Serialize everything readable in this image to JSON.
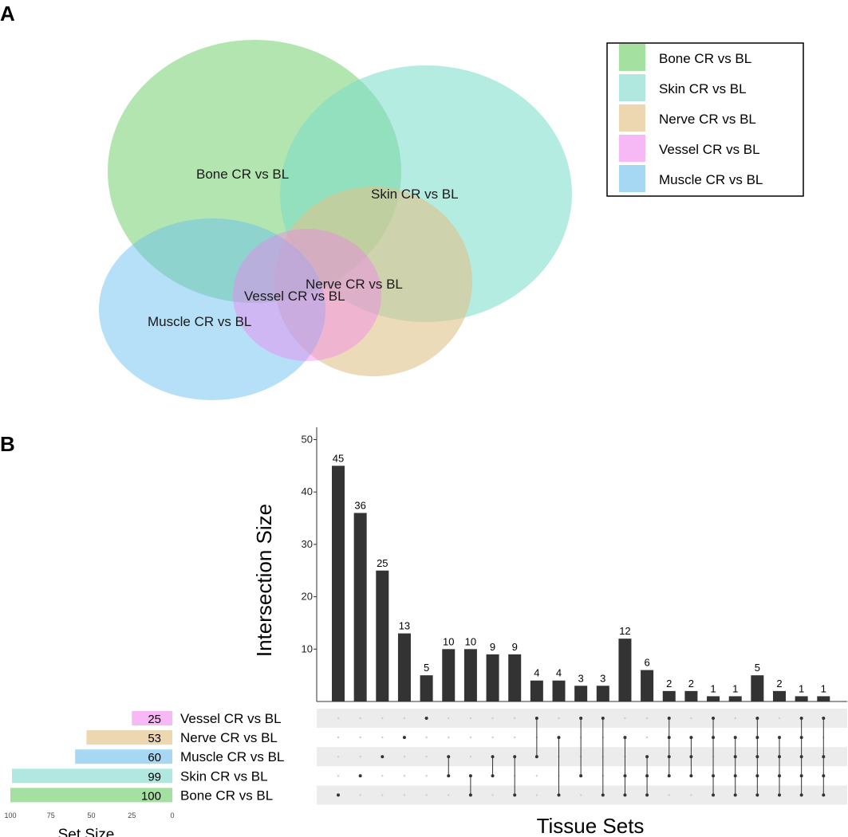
{
  "panels": {
    "a": "A",
    "b": "B"
  },
  "colors": {
    "bone": "#7fd47a",
    "skin": "#78dcc9",
    "nerve": "#e0c38a",
    "vessel": "#f47ff0",
    "muscle": "#6cc2f0",
    "bar": "#333333",
    "dot": "#333333",
    "dot_inactive": "#cccccc",
    "stripe": "#ececec"
  },
  "legend": [
    {
      "label": "Bone CR vs BL",
      "color": "#a4e0a0"
    },
    {
      "label": "Skin CR vs BL",
      "color": "#b0e8df"
    },
    {
      "label": "Nerve CR vs BL",
      "color": "#ecd7b0"
    },
    {
      "label": "Vessel CR vs BL",
      "color": "#f7b9f5"
    },
    {
      "label": "Muscle CR vs BL",
      "color": "#a7d8f3"
    }
  ],
  "venn": {
    "labels": {
      "bone": "Bone CR vs BL",
      "skin": "Skin CR vs BL",
      "nerve": "Nerve CR vs BL",
      "vessel": "Vessel CR vs BL",
      "muscle": "Muscle CR vs BL"
    }
  },
  "chart_data": {
    "type": "upset",
    "ylabel": "Intersection Size",
    "xlabel": "Tissue Sets",
    "set_size_label": "Set Size",
    "ylim": [
      0,
      52
    ],
    "yticks": [
      10,
      20,
      30,
      40,
      50
    ],
    "set_size_ticks": [
      100,
      75,
      50,
      25,
      0
    ],
    "set_size_lim": [
      0,
      100
    ],
    "sets": [
      {
        "name": "Vessel CR vs BL",
        "size": 25,
        "color": "#f7b9f5"
      },
      {
        "name": "Nerve CR vs BL",
        "size": 53,
        "color": "#ecd7b0"
      },
      {
        "name": "Muscle CR vs BL",
        "size": 60,
        "color": "#a7d8f3"
      },
      {
        "name": "Skin CR vs BL",
        "size": 99,
        "color": "#b0e8df"
      },
      {
        "name": "Bone CR vs BL",
        "size": 100,
        "color": "#a4e0a0"
      }
    ],
    "intersections": [
      {
        "value": 45,
        "members": [
          "Bone CR vs BL"
        ]
      },
      {
        "value": 36,
        "members": [
          "Skin CR vs BL"
        ]
      },
      {
        "value": 25,
        "members": [
          "Muscle CR vs BL"
        ]
      },
      {
        "value": 13,
        "members": [
          "Nerve CR vs BL"
        ]
      },
      {
        "value": 5,
        "members": [
          "Vessel CR vs BL"
        ]
      },
      {
        "value": 10,
        "members": [
          "Muscle CR vs BL",
          "Skin CR vs BL"
        ]
      },
      {
        "value": 10,
        "members": [
          "Skin CR vs BL",
          "Bone CR vs BL"
        ]
      },
      {
        "value": 9,
        "members": [
          "Muscle CR vs BL",
          "Skin CR vs BL"
        ]
      },
      {
        "value": 9,
        "members": [
          "Muscle CR vs BL",
          "Bone CR vs BL"
        ]
      },
      {
        "value": 4,
        "members": [
          "Vessel CR vs BL",
          "Muscle CR vs BL"
        ]
      },
      {
        "value": 4,
        "members": [
          "Nerve CR vs BL",
          "Bone CR vs BL"
        ]
      },
      {
        "value": 3,
        "members": [
          "Vessel CR vs BL",
          "Skin CR vs BL"
        ]
      },
      {
        "value": 3,
        "members": [
          "Vessel CR vs BL",
          "Bone CR vs BL"
        ]
      },
      {
        "value": 12,
        "members": [
          "Nerve CR vs BL",
          "Skin CR vs BL",
          "Bone CR vs BL"
        ]
      },
      {
        "value": 6,
        "members": [
          "Muscle CR vs BL",
          "Skin CR vs BL",
          "Bone CR vs BL"
        ]
      },
      {
        "value": 2,
        "members": [
          "Vessel CR vs BL",
          "Nerve CR vs BL",
          "Muscle CR vs BL",
          "Skin CR vs BL"
        ]
      },
      {
        "value": 2,
        "members": [
          "Nerve CR vs BL",
          "Muscle CR vs BL",
          "Skin CR vs BL"
        ]
      },
      {
        "value": 1,
        "members": [
          "Vessel CR vs BL",
          "Nerve CR vs BL",
          "Skin CR vs BL",
          "Bone CR vs BL"
        ]
      },
      {
        "value": 1,
        "members": [
          "Nerve CR vs BL",
          "Muscle CR vs BL",
          "Skin CR vs BL",
          "Bone CR vs BL"
        ]
      },
      {
        "value": 5,
        "members": [
          "Vessel CR vs BL",
          "Nerve CR vs BL",
          "Muscle CR vs BL",
          "Skin CR vs BL",
          "Bone CR vs BL"
        ]
      },
      {
        "value": 2,
        "members": [
          "Nerve CR vs BL",
          "Muscle CR vs BL",
          "Skin CR vs BL",
          "Bone CR vs BL"
        ]
      },
      {
        "value": 1,
        "members": [
          "Vessel CR vs BL",
          "Nerve CR vs BL",
          "Muscle CR vs BL",
          "Skin CR vs BL",
          "Bone CR vs BL"
        ]
      },
      {
        "value": 1,
        "members": [
          "Vessel CR vs BL",
          "Muscle CR vs BL",
          "Skin CR vs BL",
          "Bone CR vs BL"
        ]
      }
    ]
  }
}
